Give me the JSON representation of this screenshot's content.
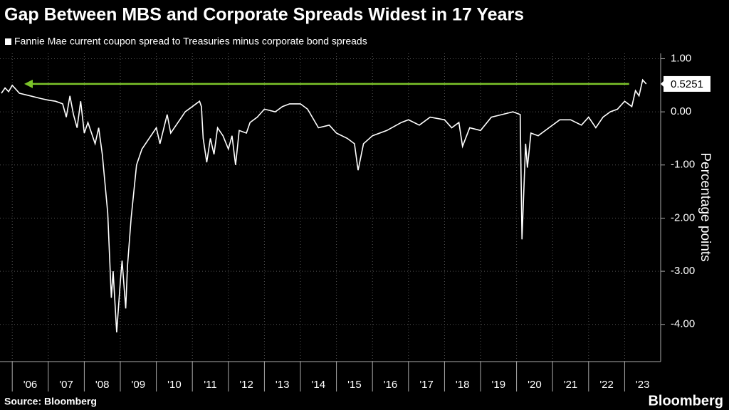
{
  "chart_data": {
    "type": "line",
    "title": "Gap Between MBS and Corporate Spreads Widest in 17 Years",
    "y_label": "Percentage points",
    "source": "Source: Bloomberg",
    "brand": "Bloomberg",
    "x": [
      2005.7,
      2005.8,
      2005.9,
      2006.0,
      2006.2,
      2006.5,
      2006.8,
      2007.0,
      2007.2,
      2007.4,
      2007.5,
      2007.6,
      2007.7,
      2007.8,
      2007.9,
      2008.0,
      2008.1,
      2008.3,
      2008.4,
      2008.5,
      2008.65,
      2008.75,
      2008.8,
      2008.9,
      2009.0,
      2009.05,
      2009.15,
      2009.2,
      2009.3,
      2009.45,
      2009.6,
      2009.8,
      2010.0,
      2010.1,
      2010.3,
      2010.4,
      2010.6,
      2010.8,
      2011.0,
      2011.2,
      2011.25,
      2011.3,
      2011.4,
      2011.5,
      2011.6,
      2011.7,
      2011.85,
      2012.0,
      2012.1,
      2012.2,
      2012.3,
      2012.5,
      2012.6,
      2012.8,
      2013.0,
      2013.3,
      2013.5,
      2013.7,
      2014.0,
      2014.2,
      2014.5,
      2014.8,
      2015.0,
      2015.3,
      2015.5,
      2015.6,
      2015.75,
      2016.0,
      2016.4,
      2016.8,
      2017.0,
      2017.3,
      2017.6,
      2018.0,
      2018.2,
      2018.4,
      2018.5,
      2018.7,
      2019.0,
      2019.3,
      2019.6,
      2019.9,
      2020.1,
      2020.15,
      2020.25,
      2020.3,
      2020.4,
      2020.6,
      2020.9,
      2021.2,
      2021.5,
      2021.8,
      2022.0,
      2022.2,
      2022.4,
      2022.6,
      2022.8,
      2023.0,
      2023.2,
      2023.3,
      2023.4,
      2023.5,
      2023.6
    ],
    "series": [
      {
        "name": "Fannie Mae current coupon spread to Treasuries minus corporate bond spreads",
        "color": "#ffffff",
        "values": [
          0.35,
          0.45,
          0.38,
          0.5,
          0.35,
          0.3,
          0.25,
          0.22,
          0.2,
          0.15,
          -0.1,
          0.3,
          -0.05,
          -0.3,
          0.2,
          -0.4,
          -0.2,
          -0.6,
          -0.3,
          -0.8,
          -1.9,
          -3.5,
          -3.0,
          -4.15,
          -3.2,
          -2.8,
          -3.7,
          -2.9,
          -2.0,
          -1.0,
          -0.7,
          -0.5,
          -0.3,
          -0.6,
          -0.05,
          -0.4,
          -0.2,
          0.0,
          0.1,
          0.2,
          0.1,
          -0.5,
          -0.95,
          -0.5,
          -0.8,
          -0.3,
          -0.45,
          -0.7,
          -0.45,
          -1.0,
          -0.35,
          -0.4,
          -0.2,
          -0.1,
          0.05,
          0.0,
          0.1,
          0.15,
          0.15,
          0.05,
          -0.3,
          -0.25,
          -0.4,
          -0.5,
          -0.6,
          -1.1,
          -0.6,
          -0.45,
          -0.35,
          -0.2,
          -0.15,
          -0.25,
          -0.1,
          -0.15,
          -0.3,
          -0.2,
          -0.65,
          -0.3,
          -0.35,
          -0.1,
          -0.05,
          0.0,
          -0.05,
          -2.4,
          -0.6,
          -1.05,
          -0.4,
          -0.45,
          -0.3,
          -0.15,
          -0.15,
          -0.25,
          -0.1,
          -0.3,
          -0.1,
          0.0,
          0.05,
          0.2,
          0.1,
          0.4,
          0.3,
          0.6,
          0.5251
        ]
      }
    ],
    "xlim": [
      2005.66,
      2024.0
    ],
    "xticks": [
      {
        "value": 2006,
        "label": "'06"
      },
      {
        "value": 2007,
        "label": "'07"
      },
      {
        "value": 2008,
        "label": "'08"
      },
      {
        "value": 2009,
        "label": "'09"
      },
      {
        "value": 2010,
        "label": "'10"
      },
      {
        "value": 2011,
        "label": "'11"
      },
      {
        "value": 2012,
        "label": "'12"
      },
      {
        "value": 2013,
        "label": "'13"
      },
      {
        "value": 2014,
        "label": "'14"
      },
      {
        "value": 2015,
        "label": "'15"
      },
      {
        "value": 2016,
        "label": "'16"
      },
      {
        "value": 2017,
        "label": "'17"
      },
      {
        "value": 2018,
        "label": "'18"
      },
      {
        "value": 2019,
        "label": "'19"
      },
      {
        "value": 2020,
        "label": "'20"
      },
      {
        "value": 2021,
        "label": "'21"
      },
      {
        "value": 2022,
        "label": "'22"
      },
      {
        "value": 2023,
        "label": "'23"
      }
    ],
    "ylim": [
      -4.7,
      1.1
    ],
    "yticks": [
      {
        "value": 1,
        "label": "1.00"
      },
      {
        "value": 0,
        "label": "0.00"
      },
      {
        "value": -1,
        "label": "-1.00"
      },
      {
        "value": -2,
        "label": "-2.00"
      },
      {
        "value": -3,
        "label": "-3.00"
      },
      {
        "value": -4,
        "label": "-4.00"
      }
    ],
    "grid": true,
    "annotation_color": "#7cc42a"
  }
}
